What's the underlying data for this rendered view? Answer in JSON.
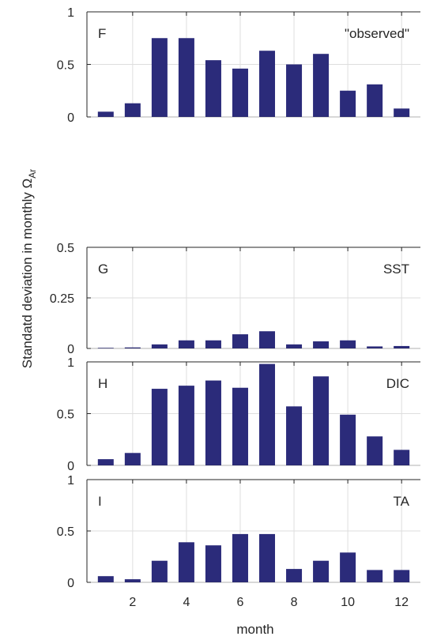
{
  "figure": {
    "ylabel": "Standatd deviation in monthly Ω",
    "ylabel_sub": "Ar",
    "xlabel": "month",
    "bar_color": "#2b2b7a",
    "grid_color": "#dedede",
    "axis_color": "#262626"
  },
  "chart_data": [
    {
      "type": "bar",
      "panel_letter": "F",
      "annotation": "\"observed\"",
      "x": [
        1,
        2,
        3,
        4,
        5,
        6,
        7,
        8,
        9,
        10,
        11,
        12
      ],
      "values": [
        0.05,
        0.13,
        0.75,
        0.75,
        0.54,
        0.46,
        0.63,
        0.5,
        0.6,
        0.25,
        0.31,
        0.08
      ],
      "ylim": [
        0,
        1
      ],
      "yticks": [
        0,
        0.5,
        1
      ],
      "ytick_labels": [
        "0",
        "0.5",
        "1"
      ],
      "xlim": [
        0.3,
        12.7
      ],
      "xticks": [
        2,
        4,
        6,
        8,
        10,
        12
      ],
      "xtick_labels": [],
      "grid": true
    },
    {
      "type": "bar",
      "panel_letter": "G",
      "annotation": "SST",
      "x": [
        1,
        2,
        3,
        4,
        5,
        6,
        7,
        8,
        9,
        10,
        11,
        12
      ],
      "values": [
        0.003,
        0.005,
        0.02,
        0.04,
        0.04,
        0.07,
        0.085,
        0.02,
        0.035,
        0.04,
        0.01,
        0.012
      ],
      "ylim": [
        0,
        0.5
      ],
      "yticks": [
        0,
        0.25,
        0.5
      ],
      "ytick_labels": [
        "0",
        "0.25",
        "0.5"
      ],
      "xlim": [
        0.3,
        12.7
      ],
      "xticks": [
        2,
        4,
        6,
        8,
        10,
        12
      ],
      "xtick_labels": [],
      "grid": true
    },
    {
      "type": "bar",
      "panel_letter": "H",
      "annotation": "DIC",
      "x": [
        1,
        2,
        3,
        4,
        5,
        6,
        7,
        8,
        9,
        10,
        11,
        12
      ],
      "values": [
        0.06,
        0.12,
        0.74,
        0.77,
        0.82,
        0.75,
        0.98,
        0.57,
        0.86,
        0.49,
        0.28,
        0.15
      ],
      "ylim": [
        0,
        1
      ],
      "yticks": [
        0,
        0.5,
        1
      ],
      "ytick_labels": [
        "0",
        "0.5",
        "1"
      ],
      "xlim": [
        0.3,
        12.7
      ],
      "xticks": [
        2,
        4,
        6,
        8,
        10,
        12
      ],
      "xtick_labels": [],
      "grid": true
    },
    {
      "type": "bar",
      "panel_letter": "I",
      "annotation": "TA",
      "x": [
        1,
        2,
        3,
        4,
        5,
        6,
        7,
        8,
        9,
        10,
        11,
        12
      ],
      "values": [
        0.06,
        0.03,
        0.21,
        0.39,
        0.36,
        0.47,
        0.47,
        0.13,
        0.21,
        0.29,
        0.12,
        0.12
      ],
      "ylim": [
        0,
        1
      ],
      "yticks": [
        0,
        0.5,
        1
      ],
      "ytick_labels": [
        "0",
        "0.5",
        "1"
      ],
      "xlim": [
        0.3,
        12.7
      ],
      "xticks": [
        2,
        4,
        6,
        8,
        10,
        12
      ],
      "xtick_labels": [
        "2",
        "4",
        "6",
        "8",
        "10",
        "12"
      ],
      "grid": true
    }
  ]
}
